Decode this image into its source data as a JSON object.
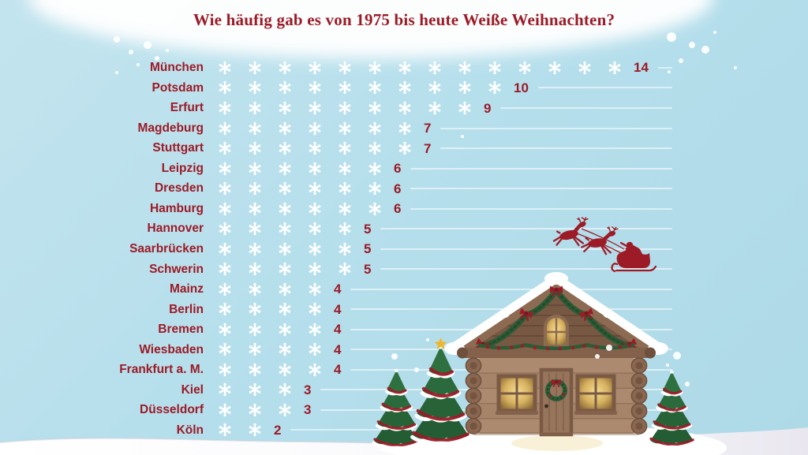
{
  "title": "Wie häufig gab es von 1975 bis heute Weiße Weihnachten?",
  "chart_data": {
    "type": "bar",
    "style": "pictograph",
    "orientation": "horizontal",
    "unit_icon": "snowflake-icon",
    "unit_value": 1,
    "title": "Wie häufig gab es von 1975 bis heute Weiße Weihnachten?",
    "categories": [
      "München",
      "Potsdam",
      "Erfurt",
      "Magdeburg",
      "Stuttgart",
      "Leipzig",
      "Dresden",
      "Hamburg",
      "Hannover",
      "Saarbrücken",
      "Schwerin",
      "Mainz",
      "Berlin",
      "Bremen",
      "Wiesbaden",
      "Frankfurt a. M.",
      "Kiel",
      "Düsseldorf",
      "Köln"
    ],
    "values": [
      14,
      10,
      9,
      7,
      7,
      6,
      6,
      6,
      5,
      5,
      5,
      4,
      4,
      4,
      4,
      4,
      3,
      3,
      2
    ],
    "xlabel": "",
    "ylabel": "",
    "xlim": [
      0,
      14
    ],
    "grid": "per-row white baseline",
    "legend": "none"
  },
  "colors": {
    "background": "#b6dfec",
    "accent_red": "#9c1b26",
    "snowflake_white": "#ffffff",
    "gridline": "rgba(255,255,255,0.55)"
  },
  "decorations": {
    "cloud": "snow-cloud-band",
    "santa": "santa-sleigh-silhouette",
    "cabin": "log-cabin-illustration",
    "trees": "christmas-trees",
    "ground": "snow-ground",
    "dots": "snow-dots"
  }
}
